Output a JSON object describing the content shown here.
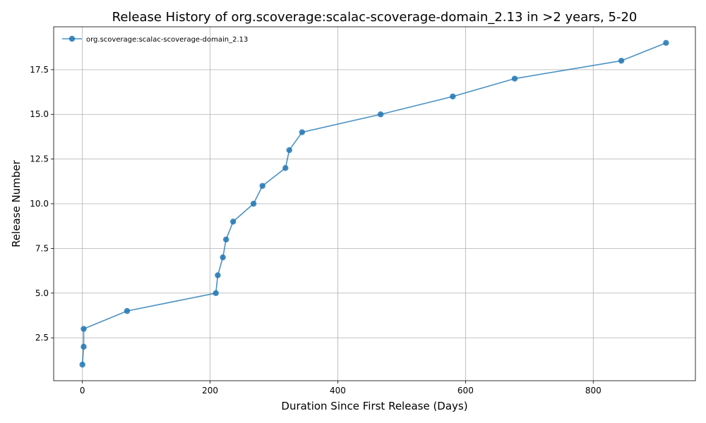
{
  "chart_data": {
    "type": "line",
    "title": "Release History of org.scoverage:scalac-scoverage-domain_2.13 in >2 years, 5-20",
    "xlabel": "Duration Since First Release (Days)",
    "ylabel": "Release Number",
    "xlim": [
      -45,
      960
    ],
    "ylim": [
      0.1,
      19.9
    ],
    "xticks": [
      0,
      200,
      400,
      600,
      800
    ],
    "yticks": [
      2.5,
      5.0,
      7.5,
      10.0,
      12.5,
      15.0,
      17.5
    ],
    "ytick_labels": [
      "2.5",
      "5.0",
      "7.5",
      "10.0",
      "12.5",
      "15.0",
      "17.5"
    ],
    "grid": true,
    "legend_position": "top-left",
    "series": [
      {
        "name": "org.scoverage:scalac-scoverage-domain_2.13",
        "color": "#1f77b4",
        "marker": "circle",
        "x": [
          0,
          2,
          2,
          70,
          209,
          212,
          220,
          225,
          236,
          268,
          282,
          318,
          324,
          344,
          467,
          580,
          677,
          844,
          914
        ],
        "y": [
          1,
          2,
          3,
          4,
          5,
          6,
          7,
          8,
          9,
          10,
          11,
          12,
          13,
          14,
          15,
          16,
          17,
          18,
          19
        ]
      }
    ]
  }
}
